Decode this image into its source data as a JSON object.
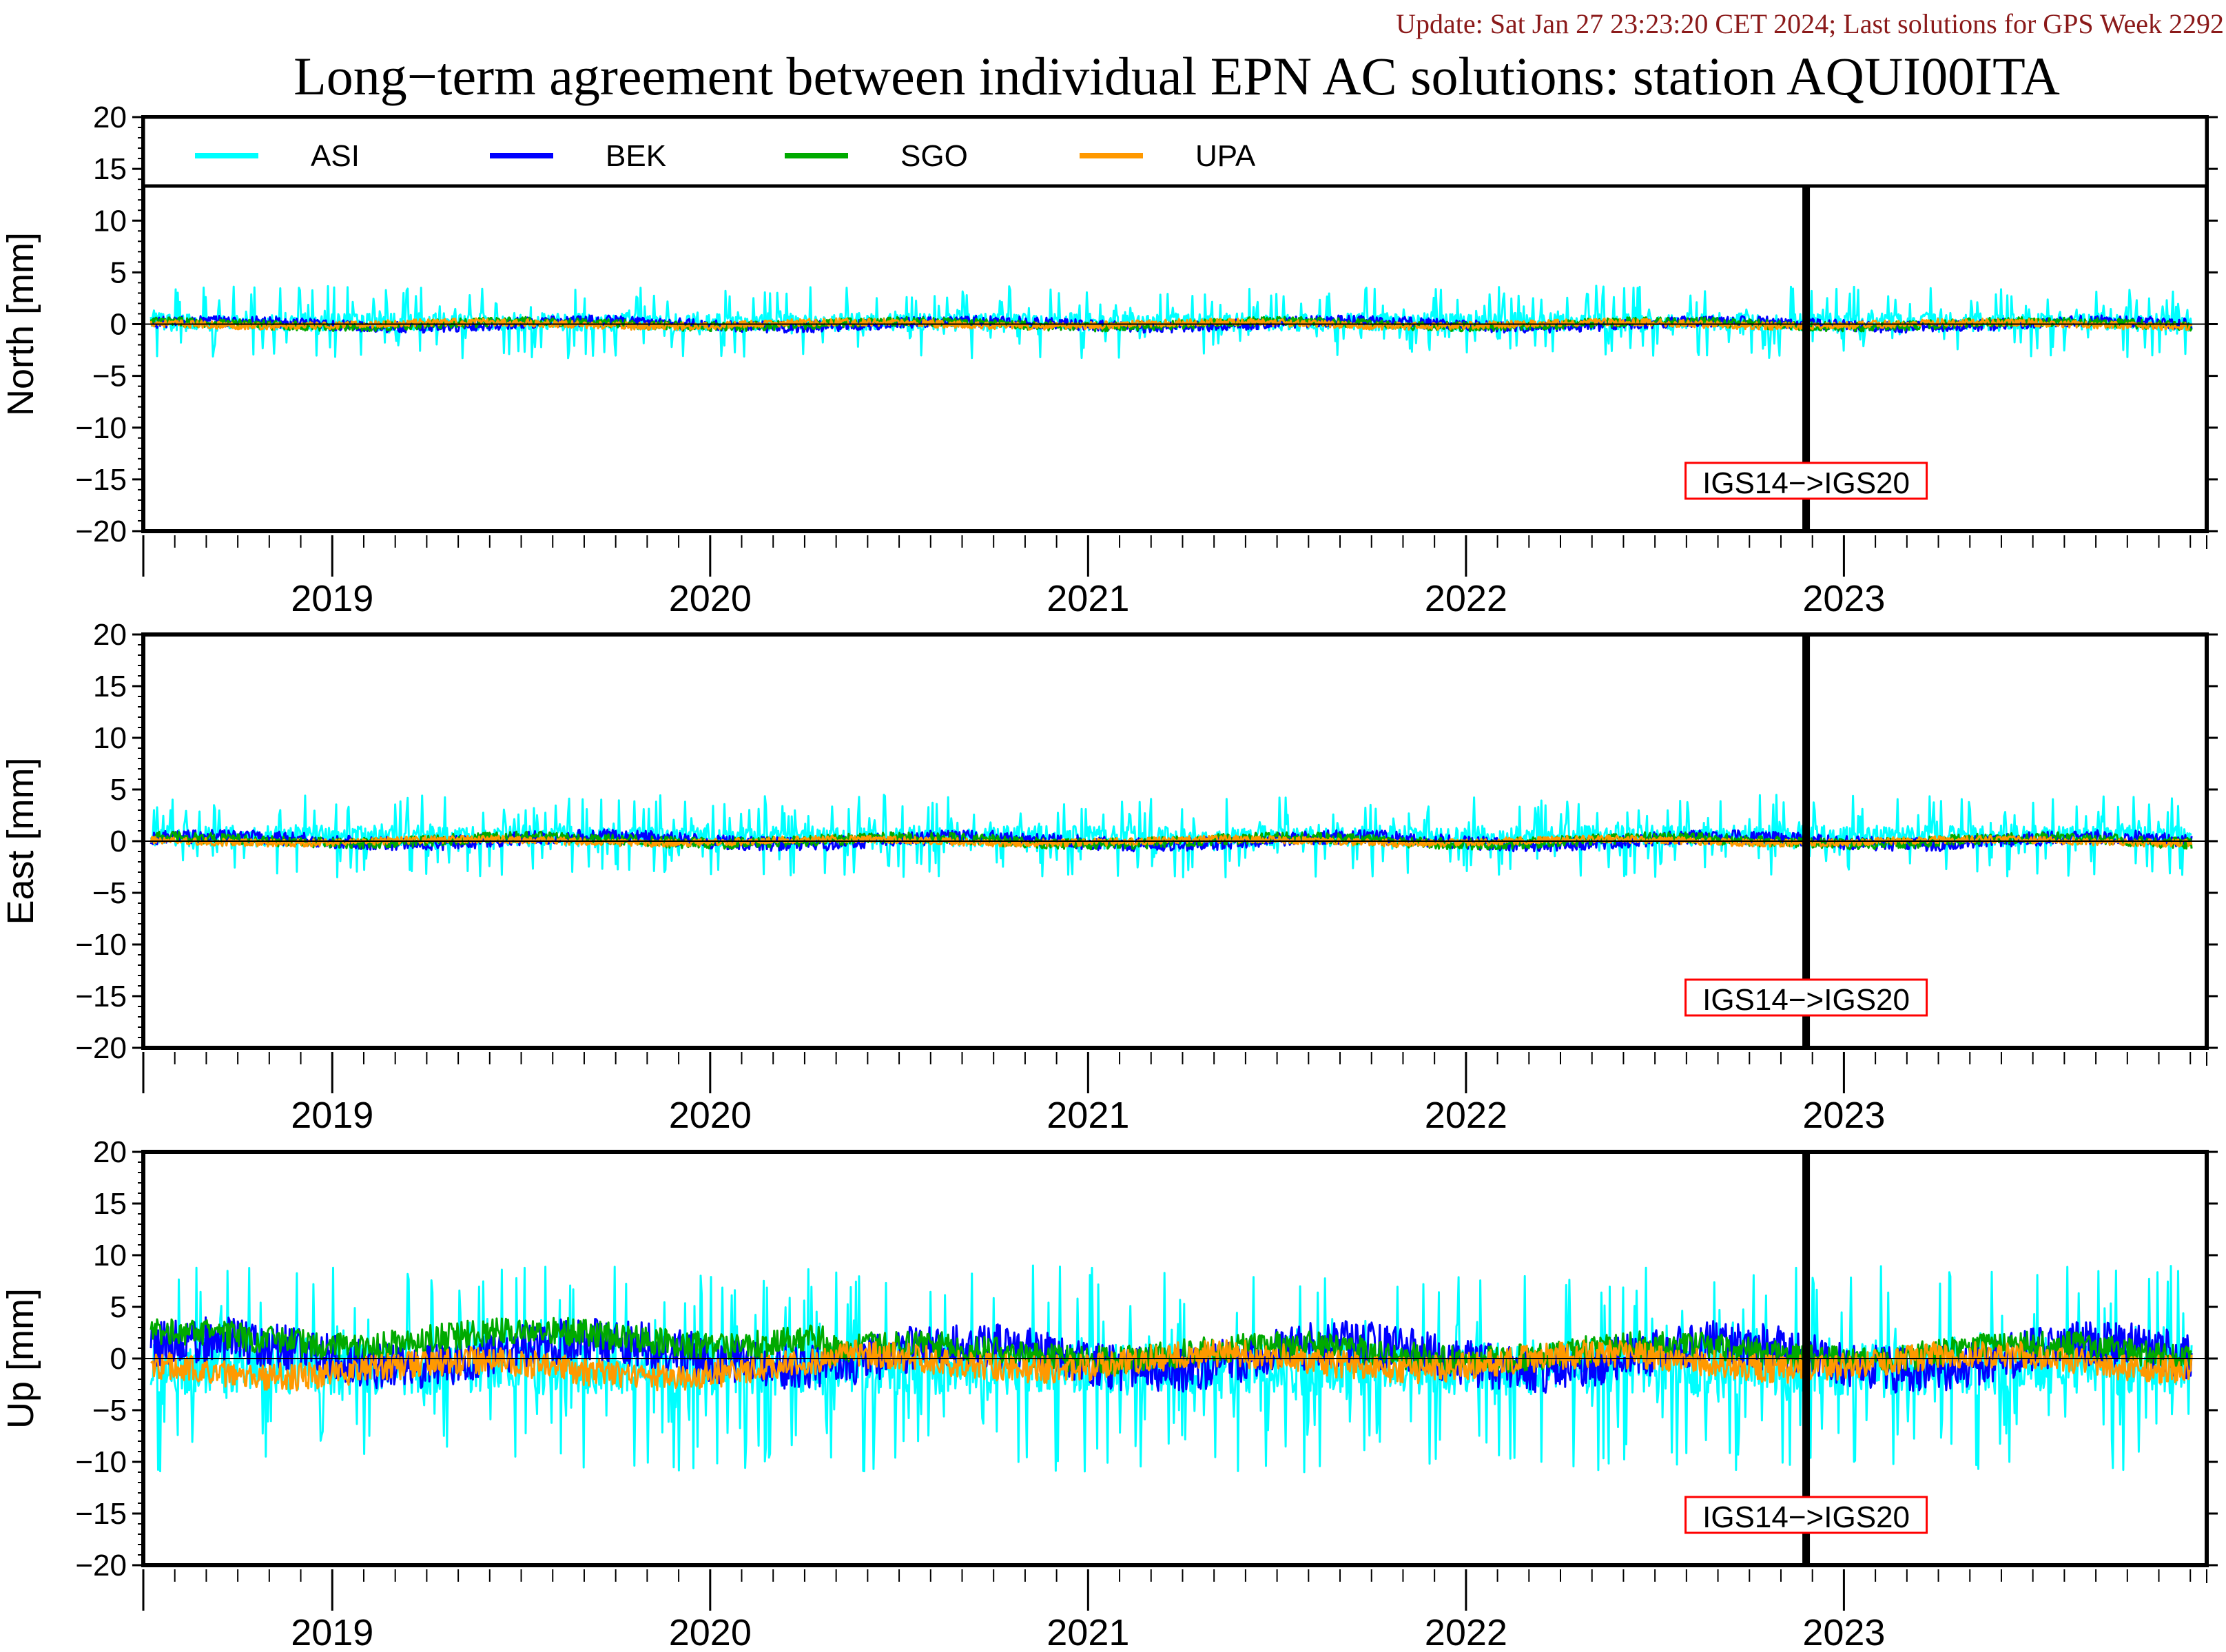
{
  "header": {
    "update_text": "Update: Sat Jan 27 23:23:20 CET 2024; Last solutions for GPS Week 2292",
    "update_color": "#8b1a1a",
    "title": "Long−term agreement between individual EPN AC solutions: station AQUI00ITA"
  },
  "legend": [
    {
      "name": "ASI",
      "color": "#00ffff"
    },
    {
      "name": "BEK",
      "color": "#0000ff"
    },
    {
      "name": "SGO",
      "color": "#00aa00"
    },
    {
      "name": "UPA",
      "color": "#ff9900"
    }
  ],
  "reference_change": {
    "label": "IGS14−>IGS20",
    "x": 2022.9,
    "box_color": "#ff0000"
  },
  "chart_data": [
    {
      "type": "line",
      "ylabel": "North [mm]",
      "ylim": [
        -20,
        20
      ],
      "yticks": [
        20,
        15,
        10,
        5,
        0,
        -5,
        -10,
        -15,
        -20
      ],
      "xlim": [
        2018.5,
        2023.96
      ],
      "xtick_labels": [
        "2019",
        "2020",
        "2021",
        "2022",
        "2023"
      ],
      "x_label_positions": [
        2019.0,
        2020.0,
        2021.0,
        2022.0,
        2023.0
      ],
      "grid": false,
      "legend_position": "top",
      "series_amplitude": {
        "ASI": 3.5,
        "BEK": 1.2,
        "SGO": 1.0,
        "UPA": 0.8
      },
      "series_bias": {
        "ASI": 0.2,
        "BEK": 0.0,
        "SGO": 0.0,
        "UPA": 0.0
      }
    },
    {
      "type": "line",
      "ylabel": "East [mm]",
      "ylim": [
        -20,
        20
      ],
      "yticks": [
        20,
        15,
        10,
        5,
        0,
        -5,
        -10,
        -15,
        -20
      ],
      "xlim": [
        2018.5,
        2023.96
      ],
      "xtick_labels": [
        "2019",
        "2020",
        "2021",
        "2022",
        "2023"
      ],
      "x_label_positions": [
        2019.0,
        2020.0,
        2021.0,
        2022.0,
        2023.0
      ],
      "grid": false,
      "series_amplitude": {
        "ASI": 4.0,
        "BEK": 1.5,
        "SGO": 1.2,
        "UPA": 0.8
      },
      "series_bias": {
        "ASI": 0.5,
        "BEK": 0.1,
        "SGO": 0.1,
        "UPA": 0.0
      }
    },
    {
      "type": "line",
      "ylabel": "Up [mm]",
      "ylim": [
        -20,
        20
      ],
      "yticks": [
        20,
        15,
        10,
        5,
        0,
        -5,
        -10,
        -15,
        -20
      ],
      "xlim": [
        2018.5,
        2023.96
      ],
      "xtick_labels": [
        "2019",
        "2020",
        "2021",
        "2022",
        "2023"
      ],
      "x_label_positions": [
        2019.0,
        2020.0,
        2021.0,
        2022.0,
        2023.0
      ],
      "grid": false,
      "series_amplitude": {
        "ASI": 10.0,
        "BEK": 5.0,
        "SGO": 3.0,
        "UPA": 3.0
      },
      "series_bias": {
        "ASI": -1.0,
        "BEK": 0.5,
        "SGO": 2.0,
        "UPA": -1.0
      }
    }
  ]
}
